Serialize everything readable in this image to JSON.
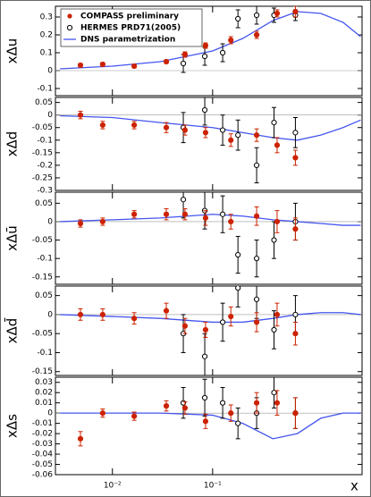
{
  "chart_data": {
    "type": "scatter",
    "xlabel": "x",
    "log_x": true,
    "legend_corner": "upper left",
    "legend": [
      {
        "name": "COMPASS preliminary",
        "color": "#cc2200"
      },
      {
        "name": "HERMES PRD71(2005)",
        "color": "#000000"
      },
      {
        "name": "DNS parametrization",
        "color": "#4455ee"
      }
    ],
    "xlim": [
      0.0027,
      3.1
    ],
    "xticks": [
      {
        "value": 0.01,
        "label": "10⁻²"
      },
      {
        "value": 0.1,
        "label": "10⁻¹"
      }
    ],
    "compass_x": [
      0.0048,
      0.008,
      0.0165,
      0.0345,
      0.053,
      0.085,
      0.152,
      0.275,
      0.44,
      0.67
    ],
    "hermes_x": [
      0.051,
      0.0835,
      0.126,
      0.179,
      0.275,
      0.41,
      0.67
    ],
    "dns_x": [
      0.003,
      0.01,
      0.03,
      0.1,
      0.2,
      0.4,
      0.7,
      1.2,
      2,
      3
    ],
    "panels": [
      {
        "ylabel": "xΔu",
        "ylim": [
          -0.14,
          0.36
        ],
        "yticks": [
          -0.1,
          0,
          0.1,
          0.2,
          0.3
        ],
        "compass": {
          "values": [
            0.03,
            0.035,
            0.025,
            0.05,
            0.09,
            0.14,
            0.17,
            0.2,
            0.32,
            0.33
          ],
          "errors": [
            0.01,
            0.01,
            0.01,
            0.01,
            0.015,
            0.015,
            0.02,
            0.02,
            0.02,
            0.03
          ]
        },
        "hermes": {
          "values": [
            0.04,
            0.08,
            0.1,
            0.29,
            0.31,
            0.31,
            0.31
          ],
          "errors": [
            0.05,
            0.05,
            0.05,
            0.05,
            0.05,
            0.04,
            0.03
          ]
        },
        "dns": {
          "values": [
            0.01,
            0.025,
            0.05,
            0.11,
            0.18,
            0.28,
            0.33,
            0.32,
            0.27,
            0.19
          ]
        }
      },
      {
        "ylabel": "xΔd",
        "ylim": [
          -0.3,
          0.07
        ],
        "yticks": [
          -0.3,
          -0.25,
          -0.2,
          -0.15,
          -0.1,
          -0.05,
          0,
          0.05
        ],
        "compass": {
          "values": [
            0.0,
            -0.04,
            -0.04,
            -0.05,
            -0.06,
            -0.07,
            -0.1,
            -0.08,
            -0.12,
            -0.17
          ],
          "errors": [
            0.015,
            0.015,
            0.015,
            0.02,
            0.02,
            0.02,
            0.025,
            0.025,
            0.03,
            0.03
          ]
        },
        "hermes": {
          "values": [
            -0.05,
            0.02,
            -0.06,
            -0.08,
            -0.2,
            -0.03,
            -0.07
          ],
          "errors": [
            0.06,
            0.06,
            0.06,
            0.06,
            0.07,
            0.06,
            0.06
          ]
        },
        "dns": {
          "values": [
            -0.003,
            -0.01,
            -0.03,
            -0.05,
            -0.07,
            -0.09,
            -0.1,
            -0.08,
            -0.05,
            -0.02
          ]
        }
      },
      {
        "ylabel": "xΔū",
        "ylim": [
          -0.17,
          0.08
        ],
        "yticks": [
          -0.15,
          -0.1,
          -0.05,
          0,
          0.05
        ],
        "compass": {
          "values": [
            -0.005,
            0.0,
            0.02,
            0.02,
            0.02,
            0.01,
            0.0,
            0.015,
            0.0,
            -0.02
          ],
          "errors": [
            0.01,
            0.01,
            0.01,
            0.015,
            0.015,
            0.02,
            0.02,
            0.025,
            0.03,
            0.03
          ]
        },
        "hermes": {
          "values": [
            0.06,
            0.03,
            0.02,
            -0.09,
            -0.1,
            -0.05,
            0.0
          ],
          "errors": [
            0.05,
            0.05,
            0.05,
            0.05,
            0.05,
            0.05,
            0.05
          ]
        },
        "dns": {
          "values": [
            0.0,
            0.005,
            0.01,
            0.02,
            0.015,
            0.005,
            0.0,
            -0.005,
            -0.01,
            -0.01
          ]
        }
      },
      {
        "ylabel": "xΔd̄",
        "ylim": [
          -0.16,
          0.075
        ],
        "yticks": [
          -0.15,
          -0.1,
          -0.05,
          0,
          0.05
        ],
        "compass": {
          "values": [
            0.0,
            0.0,
            -0.01,
            0.01,
            -0.03,
            -0.04,
            -0.005,
            -0.02,
            0.0,
            -0.05
          ],
          "errors": [
            0.015,
            0.015,
            0.015,
            0.02,
            0.02,
            0.02,
            0.025,
            0.025,
            0.03,
            0.03
          ]
        },
        "hermes": {
          "values": [
            -0.05,
            -0.11,
            -0.02,
            0.07,
            0.04,
            -0.04,
            0.0
          ],
          "errors": [
            0.05,
            0.06,
            0.05,
            0.05,
            0.05,
            0.05,
            0.05
          ]
        },
        "dns": {
          "values": [
            0.0,
            -0.005,
            -0.01,
            -0.02,
            -0.02,
            -0.01,
            0.0,
            0.005,
            0.005,
            0.0
          ]
        }
      },
      {
        "ylabel": "xΔs",
        "ylim": [
          -0.06,
          0.035
        ],
        "yticks": [
          -0.06,
          -0.05,
          -0.04,
          -0.03,
          -0.02,
          -0.01,
          0,
          0.01,
          0.02,
          0.03
        ],
        "compass": {
          "values": [
            -0.025,
            0.0,
            -0.003,
            0.007,
            0.005,
            -0.008,
            0.0,
            0.01,
            0.01,
            0.0
          ],
          "errors": [
            0.007,
            0.004,
            0.004,
            0.005,
            0.006,
            0.007,
            0.008,
            0.01,
            0.012,
            0.015
          ]
        },
        "hermes": {
          "values": [
            0.01,
            0.015,
            0.01,
            -0.01,
            0.0,
            0.02,
            0.0
          ],
          "errors": [
            0.015,
            0.018,
            0.015,
            0.015,
            0.015,
            0.015,
            0.015
          ]
        },
        "dns": {
          "values": [
            0.0,
            0.0,
            0.0,
            -0.002,
            -0.01,
            -0.025,
            -0.02,
            -0.005,
            0.0,
            0.0
          ]
        }
      }
    ]
  }
}
